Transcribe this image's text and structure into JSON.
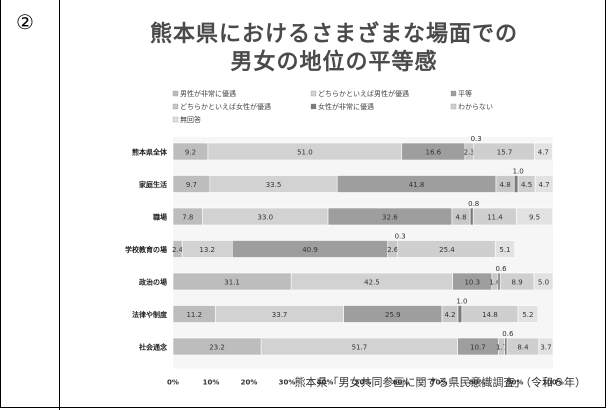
{
  "figure_number": "②",
  "title_line1": "熊本県におけるさまざまな場面での",
  "title_line2": "男女の地位の平等感",
  "source": "熊本県「男女共同参画に関する県民意識調査」（令和６年）",
  "chart_data": {
    "type": "bar",
    "orientation": "horizontal",
    "stacked": true,
    "categories": [
      "熊本県全体",
      "家庭生活",
      "職場",
      "学校教育の場",
      "政治の場",
      "法律や制度",
      "社会通念"
    ],
    "series": [
      {
        "name": "男性が非常に優遇",
        "color": "#bdbdbd",
        "values": [
          9.2,
          9.7,
          7.8,
          2.4,
          31.1,
          11.2,
          23.2
        ]
      },
      {
        "name": "どちらかといえば男性が優遇",
        "color": "#d2d2d2",
        "values": [
          51.0,
          33.5,
          33.0,
          13.2,
          42.5,
          33.7,
          51.7
        ]
      },
      {
        "name": "平等",
        "color": "#9e9e9e",
        "values": [
          16.6,
          41.8,
          32.6,
          40.9,
          10.3,
          25.9,
          10.7
        ]
      },
      {
        "name": "どちらかといえば女性が優遇",
        "color": "#c8c8c8",
        "values": [
          2.3,
          4.8,
          4.8,
          2.6,
          1.6,
          4.2,
          1.7
        ]
      },
      {
        "name": "女性が非常に優遇",
        "color": "#7a7a7a",
        "values": [
          0.3,
          1.0,
          0.8,
          0.3,
          0.6,
          1.0,
          0.6
        ]
      },
      {
        "name": "わからない",
        "color": "#cfcfcf",
        "values": [
          15.7,
          4.5,
          11.4,
          25.4,
          8.9,
          14.8,
          8.4
        ]
      },
      {
        "name": "無回答",
        "color": "#e2e2e2",
        "values": [
          4.7,
          4.7,
          9.5,
          5.1,
          5.0,
          5.2,
          3.7
        ]
      }
    ],
    "xlim": [
      0,
      100
    ],
    "xticks": [
      "0%",
      "10%",
      "20%",
      "30%",
      "40%",
      "50%",
      "60%",
      "70%",
      "80%",
      "90%",
      "100%"
    ],
    "legend_position": "top"
  }
}
